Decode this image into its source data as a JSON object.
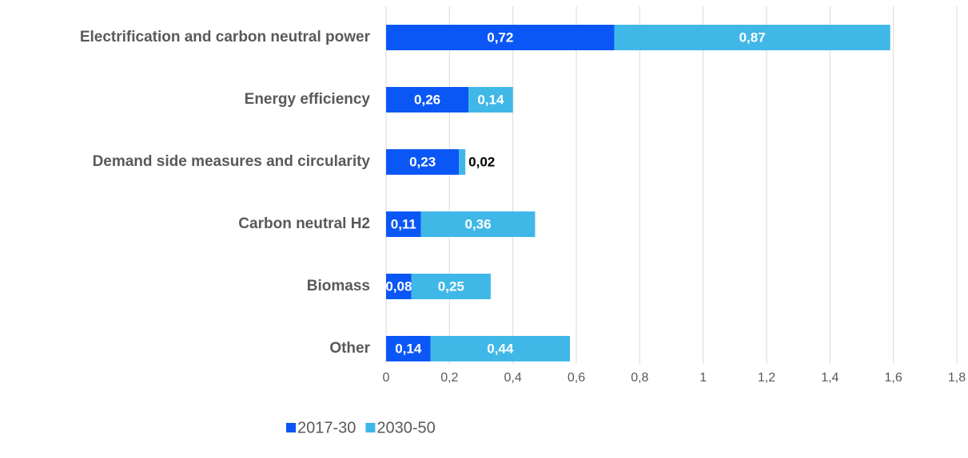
{
  "chart_data": {
    "type": "stacked-barh",
    "categories": [
      "Electrification and carbon neutral power",
      "Energy efficiency",
      "Demand side measures and circularity",
      "Carbon neutral H2",
      "Biomass",
      "Other"
    ],
    "series": [
      {
        "name": "2017-30",
        "color": "#0b57f5",
        "values": [
          0.72,
          0.26,
          0.23,
          0.11,
          0.08,
          0.14
        ],
        "value_labels": [
          "0,72",
          "0,26",
          "0,23",
          "0,11",
          "0,08",
          "0,14"
        ]
      },
      {
        "name": "2030-50",
        "color": "#3fb8e8",
        "values": [
          0.87,
          0.14,
          0.02,
          0.36,
          0.25,
          0.44
        ],
        "value_labels": [
          "0,87",
          "0,14",
          "0,02",
          "0,36",
          "0,25",
          "0,44"
        ]
      }
    ],
    "xlim": [
      0,
      1.8
    ],
    "xticks": [
      0,
      {
        "value": 0.2,
        "label": "0,2"
      },
      {
        "value": 0.4,
        "label": "0,4"
      },
      {
        "value": 0.6,
        "label": "0,6"
      },
      {
        "value": 0.8,
        "label": "0,8"
      },
      1,
      {
        "value": 1.2,
        "label": "1,2"
      },
      {
        "value": 1.4,
        "label": "1,4"
      },
      {
        "value": 1.6,
        "label": "1,6"
      },
      {
        "value": 1.8,
        "label": "1,8"
      }
    ],
    "grid": true,
    "legend": "bottom"
  }
}
